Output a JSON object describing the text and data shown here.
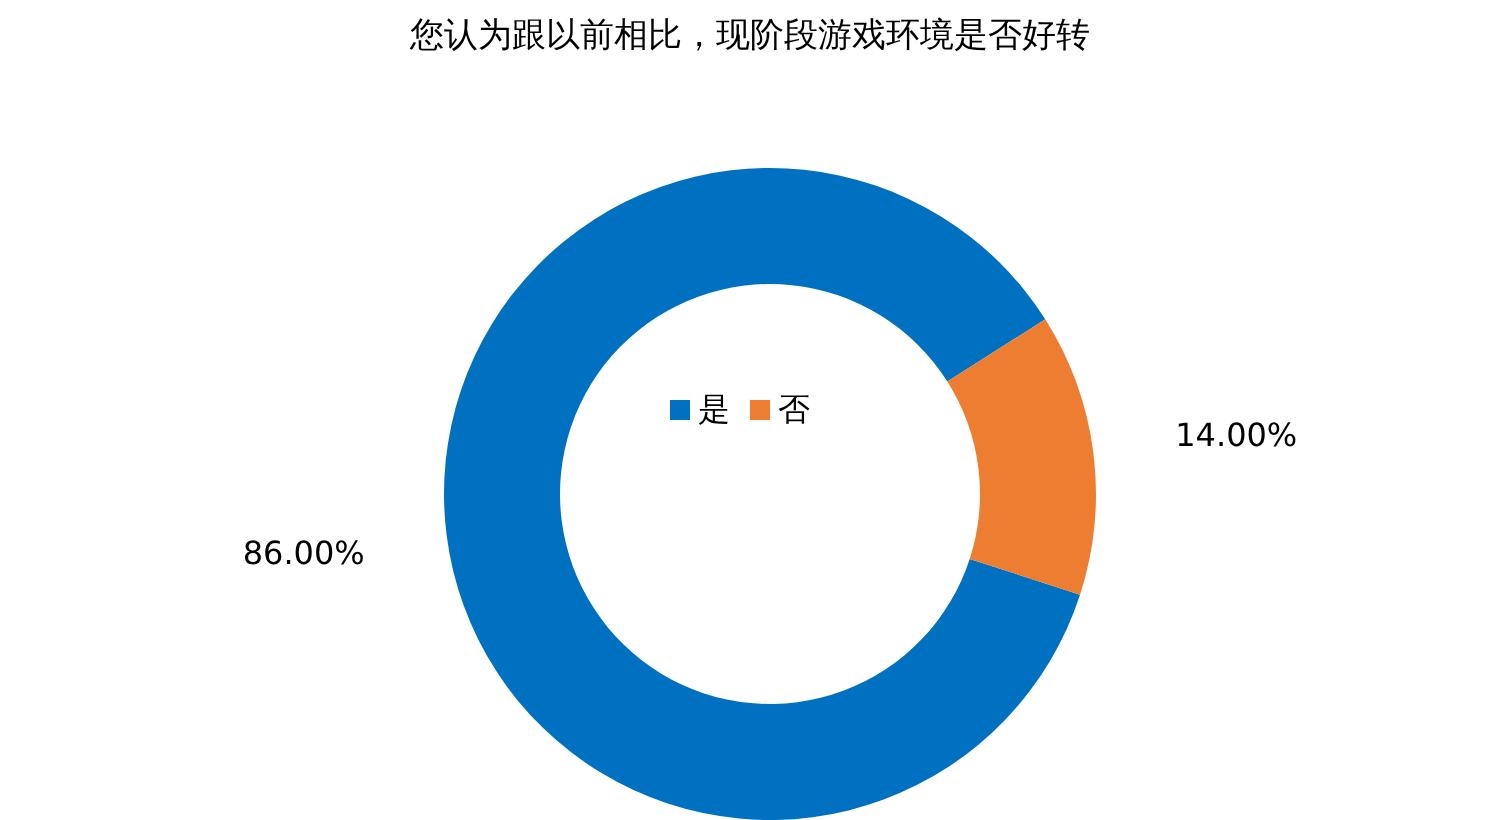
{
  "chart_data": {
    "type": "donut",
    "title": "您认为跟以前相比，现阶段游戏环境是否好转",
    "categories": [
      "是",
      "否"
    ],
    "values": [
      86,
      14
    ],
    "colors": [
      "#0070c0",
      "#ed7d31"
    ],
    "value_labels": [
      "86.00%",
      "14.00%"
    ],
    "legend": "center"
  }
}
